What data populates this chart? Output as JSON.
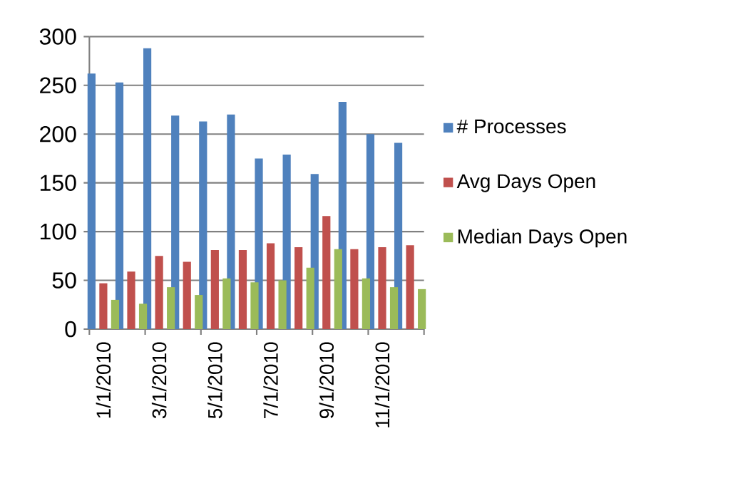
{
  "chart_data": {
    "type": "bar",
    "categories": [
      "1/1/2010",
      null,
      "3/1/2010",
      null,
      "5/1/2010",
      null,
      "7/1/2010",
      null,
      "9/1/2010",
      null,
      "11/1/2010",
      null
    ],
    "series": [
      {
        "name": "# Processes",
        "color": "#4f81bd",
        "values": [
          262,
          253,
          288,
          219,
          213,
          220,
          175,
          179,
          159,
          233,
          200,
          191
        ]
      },
      {
        "name": "Avg Days Open",
        "color": "#c0504d",
        "values": [
          47,
          59,
          75,
          69,
          81,
          81,
          88,
          84,
          116,
          82,
          84,
          86
        ]
      },
      {
        "name": "Median Days Open",
        "color": "#9bbb59",
        "values": [
          30,
          26,
          43,
          35,
          52,
          48,
          50,
          63,
          82,
          52,
          43,
          41
        ]
      }
    ],
    "ylim": [
      0,
      300
    ],
    "yticks": [
      0,
      50,
      100,
      150,
      200,
      250,
      300
    ],
    "grid": "y",
    "legend": "right"
  }
}
